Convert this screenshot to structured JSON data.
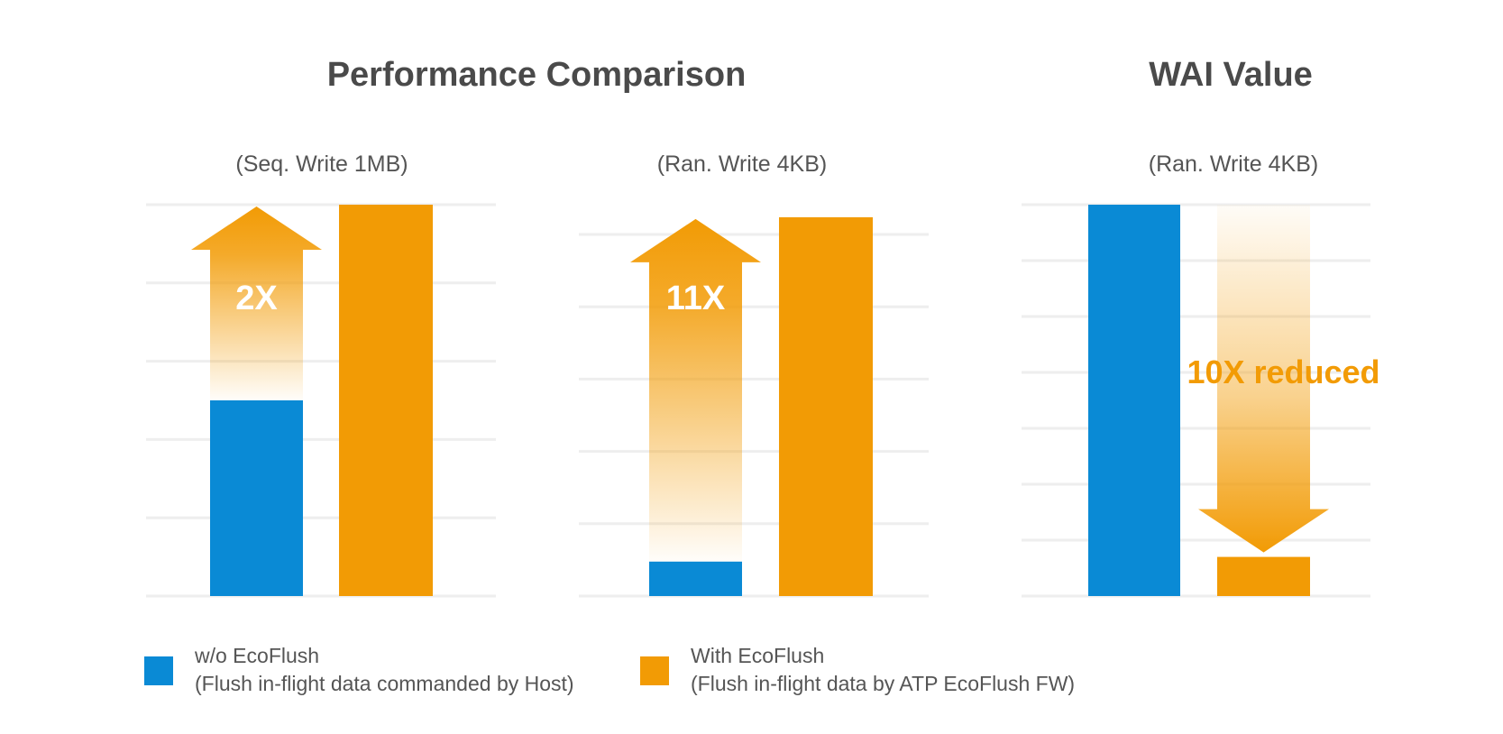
{
  "headings": {
    "performance": "Performance Comparison",
    "wai": "WAI Value"
  },
  "colors": {
    "without": "#0a8ad5",
    "with": "#f29b05",
    "gridline": "#eeeeee",
    "title": "#4a4a4a",
    "subtitle": "#555555"
  },
  "legend": [
    {
      "line1": "w/o EcoFlush",
      "line2": "(Flush in-flight data commanded by Host)",
      "color": "#0a8ad5"
    },
    {
      "line1": "With EcoFlush",
      "line2": "(Flush in-flight data by ATP EcoFlush FW)",
      "color": "#f29b05"
    }
  ],
  "chart_data": [
    {
      "type": "bar",
      "title": "(Seq. Write 1MB)",
      "series": [
        {
          "name": "w/o EcoFlush",
          "values": [
            1
          ]
        },
        {
          "name": "With EcoFlush",
          "values": [
            2
          ]
        }
      ],
      "ylim": [
        0,
        2
      ],
      "gridlines": 5,
      "grid": true,
      "annotation": {
        "text": "2X",
        "direction": "up",
        "from_series": 0,
        "to_series": 1
      }
    },
    {
      "type": "bar",
      "title": "(Ran. Write 4KB)",
      "series": [
        {
          "name": "w/o EcoFlush",
          "values": [
            1
          ]
        },
        {
          "name": "With EcoFlush",
          "values": [
            11
          ]
        }
      ],
      "ylim": [
        0,
        10.5
      ],
      "gridlines": 5,
      "grid": true,
      "annotation": {
        "text": "11X",
        "direction": "up",
        "from_series": 0,
        "to_series": 1
      }
    },
    {
      "type": "bar",
      "title": "(Ran. Write 4KB)",
      "series": [
        {
          "name": "w/o EcoFlush",
          "values": [
            10
          ]
        },
        {
          "name": "With EcoFlush",
          "values": [
            1
          ]
        }
      ],
      "ylim": [
        0,
        10
      ],
      "gridlines": 7,
      "grid": true,
      "annotation": {
        "text": "10X reduced",
        "direction": "down",
        "from_series": 0,
        "to_series": 1
      }
    }
  ]
}
